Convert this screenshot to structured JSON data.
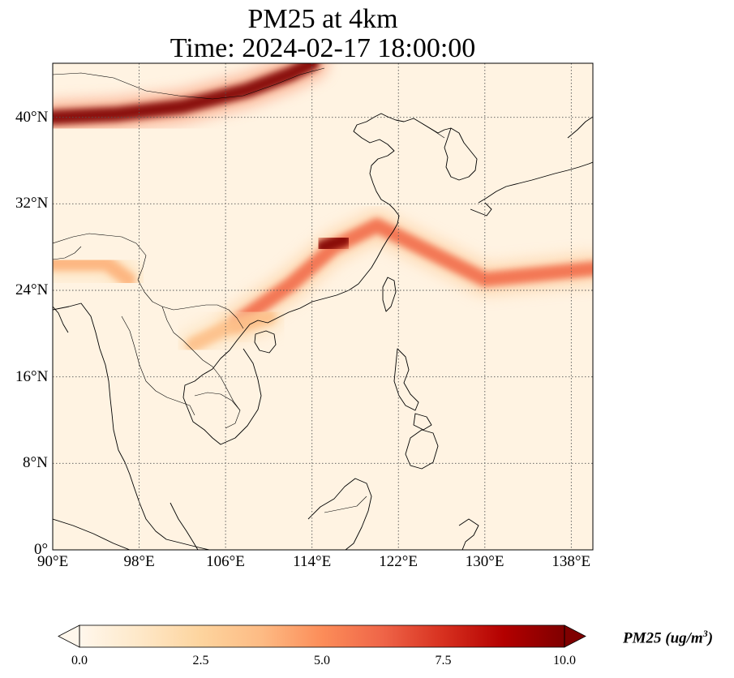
{
  "title": {
    "line1": "PM25 at 4km",
    "line2": "Time: 2024-02-17 18:00:00"
  },
  "map": {
    "projection": "PlateCarree",
    "lon_range": [
      90,
      140
    ],
    "lat_range": [
      0,
      45
    ],
    "lon_ticks": [
      {
        "value": 90,
        "label": "90°E"
      },
      {
        "value": 98,
        "label": "98°E"
      },
      {
        "value": 106,
        "label": "106°E"
      },
      {
        "value": 114,
        "label": "114°E"
      },
      {
        "value": 122,
        "label": "122°E"
      },
      {
        "value": 130,
        "label": "130°E"
      },
      {
        "value": 138,
        "label": "138°E"
      }
    ],
    "lat_ticks": [
      {
        "value": 0,
        "label": "0°"
      },
      {
        "value": 8,
        "label": "8°N"
      },
      {
        "value": 16,
        "label": "16°N"
      },
      {
        "value": 24,
        "label": "24°N"
      },
      {
        "value": 32,
        "label": "32°N"
      },
      {
        "value": 40,
        "label": "40°N"
      }
    ],
    "gridlines": "dotted",
    "features": [
      "coastlines",
      "country borders"
    ],
    "plumes": [
      {
        "name": "northern band",
        "path": [
          [
            90,
            40
          ],
          [
            96,
            40.3
          ],
          [
            102,
            41
          ],
          [
            108,
            42.5
          ],
          [
            112,
            44
          ],
          [
            114,
            45
          ]
        ],
        "level": 10.0
      },
      {
        "name": "east china plume",
        "path": [
          [
            107,
            21
          ],
          [
            112,
            24.5
          ],
          [
            116,
            28
          ],
          [
            120,
            30
          ],
          [
            124,
            28
          ],
          [
            130,
            25
          ],
          [
            140,
            26
          ]
        ],
        "level": 6.0
      },
      {
        "name": "yangtze hotspot",
        "path": [
          [
            115,
            28
          ],
          [
            117,
            28.7
          ]
        ],
        "level": 10.0
      },
      {
        "name": "myanmar band",
        "path": [
          [
            90,
            26.5
          ],
          [
            95,
            26.5
          ],
          [
            97,
            25
          ]
        ],
        "level": 4.0
      },
      {
        "name": "indochina streaks",
        "path": [
          [
            103,
            19
          ],
          [
            106,
            20.5
          ],
          [
            110,
            21.5
          ]
        ],
        "level": 3.5
      }
    ]
  },
  "colorbar": {
    "cmap": "OrRd",
    "vmin": 0.0,
    "vmax": 10.0,
    "extend": "both",
    "colors": [
      "#fff7ec",
      "#fee8c8",
      "#fdd49e",
      "#fdbb84",
      "#fc8d59",
      "#ef6548",
      "#d7301f",
      "#b30000",
      "#7f0000"
    ],
    "ticks": [
      {
        "value": 0.0,
        "label": "0.0"
      },
      {
        "value": 2.5,
        "label": "2.5"
      },
      {
        "value": 5.0,
        "label": "5.0"
      },
      {
        "value": 7.5,
        "label": "7.5"
      },
      {
        "value": 10.0,
        "label": "10.0"
      }
    ],
    "label_text": "PM25 (ug/m",
    "label_exp": "3",
    "label_close": ")"
  }
}
